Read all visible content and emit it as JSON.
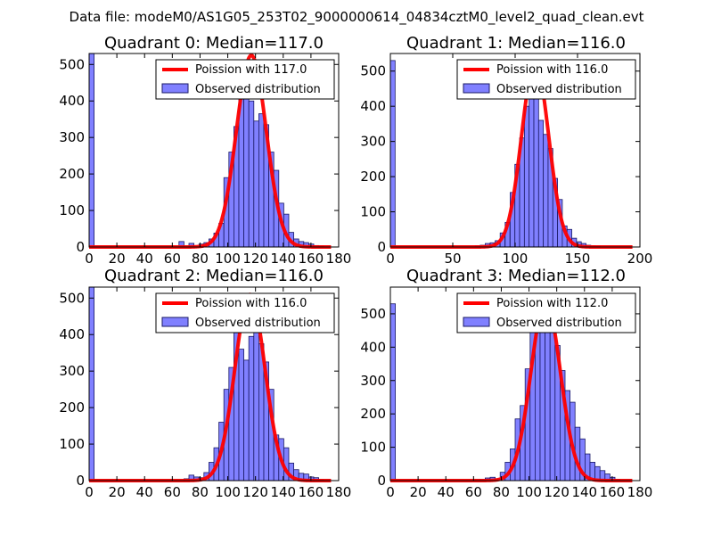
{
  "figure": {
    "suptitle": "Data file: modeM0/AS1G05_253T02_9000000614_04834cztM0_level2_quad_clean.evt",
    "colors": {
      "hist_fill": "#8080ff",
      "hist_edge": "#1a1a66",
      "poisson": "#ff0000",
      "background": "#ffffff"
    }
  },
  "chart_data": [
    {
      "type": "bar",
      "title": "Quadrant 0: Median=117.0",
      "median": 117.0,
      "xlim": [
        0,
        180
      ],
      "ylim": [
        0,
        530
      ],
      "xticks": [
        0,
        20,
        40,
        60,
        80,
        100,
        120,
        140,
        160,
        180
      ],
      "yticks": [
        0,
        100,
        200,
        300,
        400,
        500
      ],
      "bin_width": 3.6,
      "bin_starts": [
        0,
        64.8,
        72,
        79.2,
        82.8,
        86.4,
        90,
        93.6,
        97.2,
        100.8,
        104.4,
        108,
        111.6,
        115.2,
        118.8,
        122.4,
        126,
        129.6,
        133.2,
        136.8,
        140.4,
        144,
        147.6,
        151.2,
        154.8,
        158.4,
        162,
        165.6
      ],
      "counts": [
        530,
        15,
        10,
        8,
        12,
        22,
        38,
        65,
        190,
        260,
        330,
        415,
        505,
        400,
        345,
        365,
        335,
        260,
        210,
        120,
        90,
        40,
        22,
        15,
        12,
        8,
        4,
        2
      ],
      "poisson_label": "Poission with 117.0",
      "poisson_peak": 525,
      "poisson_sigma": 10.8,
      "hist_label": "Observed distribution"
    },
    {
      "type": "bar",
      "title": "Quadrant 1: Median=116.0",
      "median": 116.0,
      "xlim": [
        0,
        200
      ],
      "ylim": [
        0,
        550
      ],
      "xticks": [
        0,
        50,
        100,
        150,
        200
      ],
      "yticks": [
        0,
        100,
        200,
        300,
        400,
        500
      ],
      "bin_width": 3.8,
      "bin_starts": [
        0,
        68,
        72,
        76,
        80,
        84,
        88,
        92,
        96,
        99.8,
        103.6,
        107.4,
        111.2,
        115,
        118.8,
        122.6,
        126.4,
        130.2,
        134,
        137.8,
        141.6,
        145.4,
        149.2,
        153,
        156.8,
        160.6,
        164.4
      ],
      "counts": [
        530,
        3,
        5,
        10,
        12,
        18,
        40,
        70,
        155,
        235,
        310,
        400,
        530,
        490,
        360,
        320,
        280,
        195,
        135,
        60,
        50,
        25,
        15,
        10,
        5,
        3,
        2
      ],
      "poisson_label": "Poission with 116.0",
      "poisson_peak": 525,
      "poisson_sigma": 10.8,
      "hist_label": "Observed distribution"
    },
    {
      "type": "bar",
      "title": "Quadrant 2: Median=116.0",
      "median": 116.0,
      "xlim": [
        0,
        180
      ],
      "ylim": [
        0,
        530
      ],
      "xticks": [
        0,
        20,
        40,
        60,
        80,
        100,
        120,
        140,
        160,
        180
      ],
      "yticks": [
        0,
        100,
        200,
        300,
        400,
        500
      ],
      "bin_width": 3.6,
      "bin_starts": [
        0,
        68.4,
        72,
        75.6,
        79.2,
        82.8,
        86.4,
        90,
        93.6,
        97.2,
        100.8,
        104.4,
        108,
        111.6,
        115.2,
        118.8,
        122.4,
        126,
        129.6,
        133.2,
        136.8,
        140.4,
        144,
        147.6,
        151.2,
        154.8,
        158.4,
        162,
        165.6
      ],
      "counts": [
        530,
        5,
        15,
        10,
        8,
        22,
        50,
        90,
        160,
        250,
        310,
        405,
        360,
        330,
        395,
        420,
        375,
        325,
        250,
        125,
        115,
        90,
        48,
        30,
        20,
        18,
        10,
        8,
        2
      ],
      "poisson_label": "Poission with 116.0",
      "poisson_peak": 510,
      "poisson_sigma": 10.8,
      "hist_label": "Observed distribution"
    },
    {
      "type": "bar",
      "title": "Quadrant 3: Median=112.0",
      "median": 112.0,
      "xlim": [
        0,
        180
      ],
      "ylim": [
        0,
        580
      ],
      "xticks": [
        0,
        20,
        40,
        60,
        80,
        100,
        120,
        140,
        160,
        180
      ],
      "yticks": [
        0,
        100,
        200,
        300,
        400,
        500
      ],
      "bin_width": 3.6,
      "bin_starts": [
        0,
        61.2,
        64.8,
        68.4,
        72,
        75.6,
        79.2,
        82.8,
        86.4,
        90,
        93.6,
        97.2,
        100.8,
        104.4,
        108,
        111.6,
        115.2,
        118.8,
        122.4,
        126,
        129.6,
        133.2,
        136.8,
        140.4,
        144,
        147.6,
        151.2,
        154.8,
        158.4,
        162
      ],
      "counts": [
        530,
        4,
        3,
        8,
        10,
        5,
        25,
        55,
        95,
        185,
        225,
        335,
        470,
        525,
        530,
        510,
        475,
        405,
        330,
        270,
        235,
        160,
        125,
        80,
        55,
        42,
        30,
        20,
        10,
        4
      ],
      "poisson_label": "Poission with 112.0",
      "poisson_peak": 540,
      "poisson_sigma": 10.6,
      "hist_label": "Observed distribution"
    }
  ]
}
